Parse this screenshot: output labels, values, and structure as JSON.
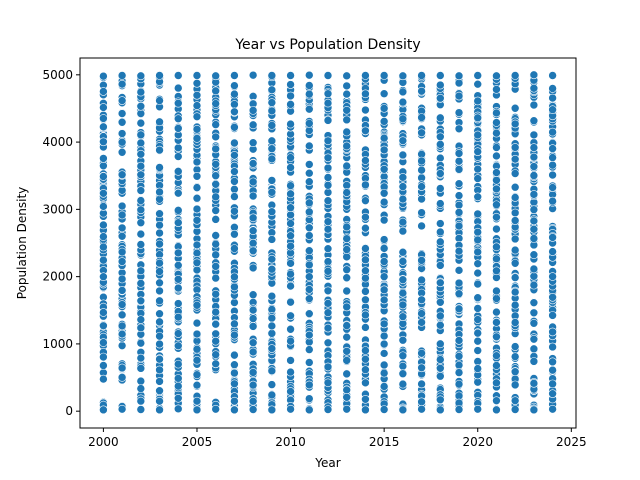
{
  "chart_data": {
    "type": "scatter",
    "title": "Year vs Population Density",
    "xlabel": "Year",
    "ylabel": "Population Density",
    "xlim": [
      1998.75,
      2025.25
    ],
    "ylim": [
      -250,
      5250
    ],
    "xticks": [
      2000,
      2005,
      2010,
      2015,
      2020,
      2025
    ],
    "yticks": [
      0,
      1000,
      2000,
      3000,
      4000,
      5000
    ],
    "grid": false,
    "legend": "none",
    "point_color": "#1f77b4",
    "point_edge_color": "#ffffff",
    "x_values": [
      2000,
      2001,
      2002,
      2003,
      2004,
      2005,
      2006,
      2007,
      2008,
      2009,
      2010,
      2011,
      2012,
      2013,
      2014,
      2015,
      2016,
      2017,
      2018,
      2019,
      2020,
      2021,
      2022,
      2023,
      2024
    ],
    "y_range_per_year": [
      0,
      5000
    ],
    "series": [
      {
        "x": [
          2000,
          2001,
          2002,
          2003,
          2004,
          2005,
          2006,
          2007,
          2008,
          2009,
          2010,
          2011,
          2012,
          2013,
          2014,
          2015,
          2016,
          2017,
          2018,
          2019,
          2020,
          2021,
          2022,
          2023,
          2024
        ],
        "y_min": [
          20,
          30,
          25,
          20,
          35,
          20,
          30,
          20,
          25,
          20,
          30,
          20,
          25,
          30,
          20,
          25,
          20,
          30,
          20,
          25,
          30,
          20,
          25,
          20,
          30
        ],
        "y_max": [
          4980,
          4990,
          4985,
          4990,
          4990,
          4990,
          4985,
          4990,
          4995,
          4990,
          4990,
          4995,
          4990,
          4985,
          4990,
          4990,
          4985,
          4990,
          4990,
          4985,
          4990,
          4985,
          4990,
          5000,
          4990
        ]
      }
    ]
  }
}
